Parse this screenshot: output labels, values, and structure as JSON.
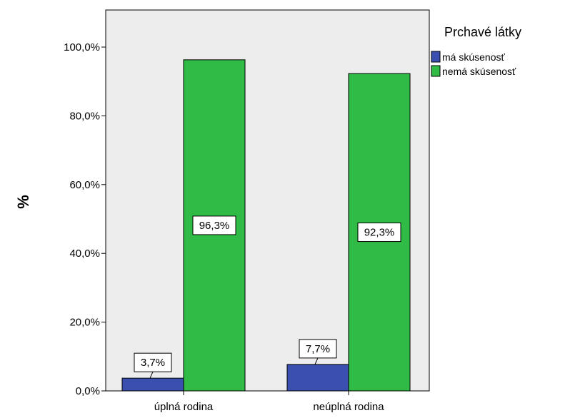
{
  "chart_data": {
    "type": "bar",
    "categories": [
      "úplná rodina",
      "neúplná rodina"
    ],
    "series": [
      {
        "name": "má skúsenosť",
        "values": [
          3.7,
          7.7
        ],
        "labels": [
          "3,7%",
          "7,7%"
        ],
        "color": "#3b4fb0"
      },
      {
        "name": "nemá skúsenosť",
        "values": [
          96.3,
          92.3
        ],
        "labels": [
          "96,3%",
          "92,3%"
        ],
        "color": "#2fbb46"
      }
    ],
    "ylabel": "%",
    "ylim": [
      0,
      100
    ],
    "yticks": [
      0,
      20,
      40,
      60,
      80,
      100
    ],
    "ytick_labels": [
      "0,0%",
      "20,0%",
      "40,0%",
      "60,0%",
      "80,0%",
      "100,0%"
    ],
    "legend_title": "Prchavé látky",
    "legend_position": "right",
    "plot_background": "#ededed",
    "grid": false
  }
}
